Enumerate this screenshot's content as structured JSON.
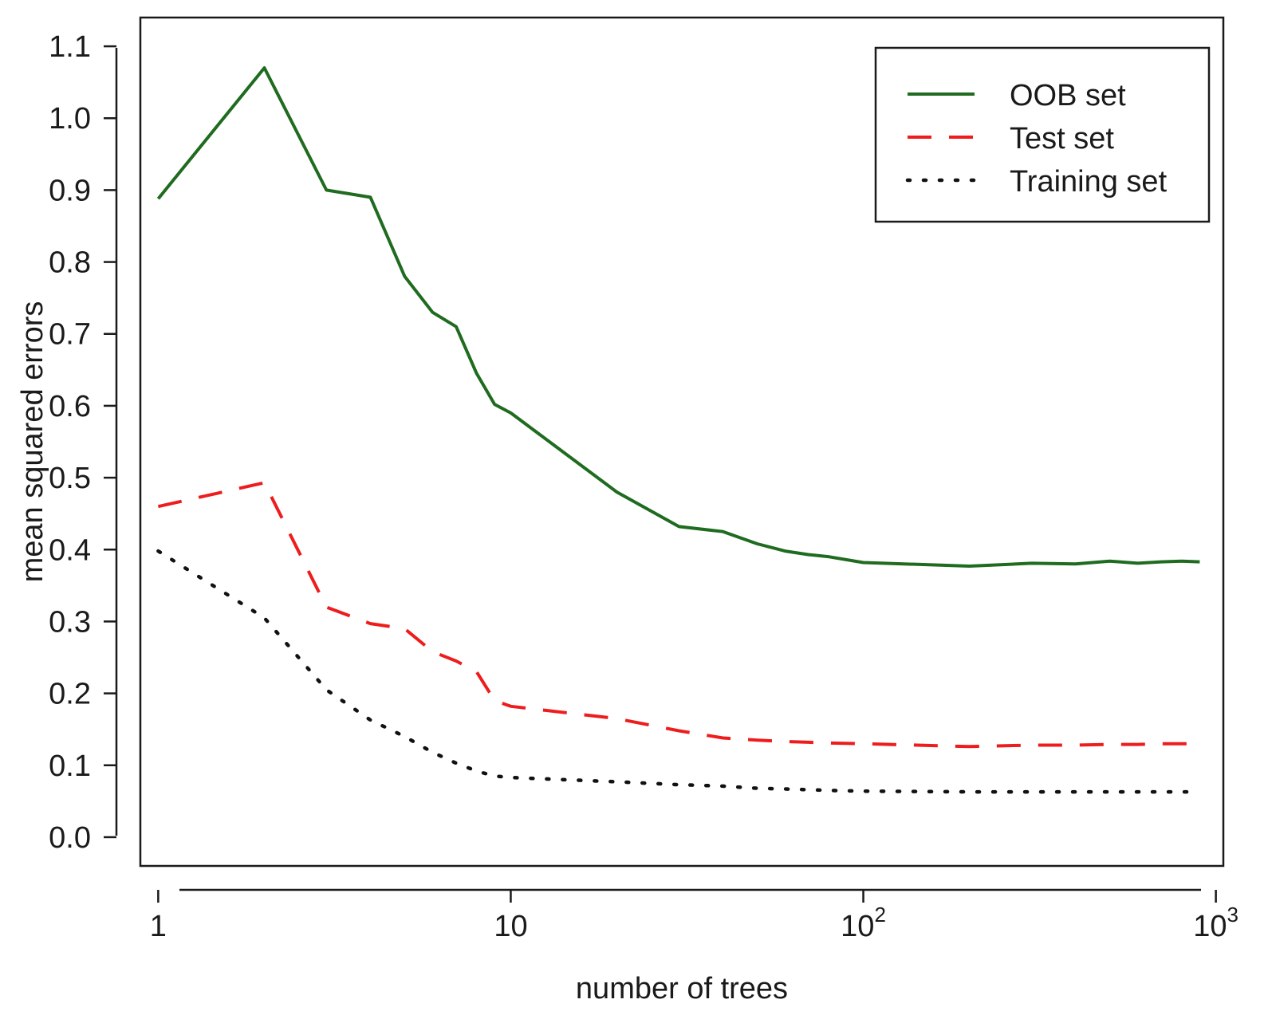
{
  "chart_data": {
    "type": "line",
    "title": "",
    "xlabel": "number of trees",
    "ylabel": "mean squared errors",
    "xscale": "log10",
    "xlim": [
      0.89,
      1050
    ],
    "ylim": [
      -0.04,
      1.14
    ],
    "grid": false,
    "legend_position": "top-right",
    "x_ticks": [
      {
        "value": 1,
        "base": "1",
        "exp": ""
      },
      {
        "value": 10,
        "base": "10",
        "exp": ""
      },
      {
        "value": 100,
        "base": "10",
        "exp": "2"
      },
      {
        "value": 1000,
        "base": "10",
        "exp": "3"
      }
    ],
    "y_ticks": [
      "0.0",
      "0.1",
      "0.2",
      "0.3",
      "0.4",
      "0.5",
      "0.6",
      "0.7",
      "0.8",
      "0.9",
      "1.0",
      "1.1"
    ],
    "series": [
      {
        "name": "OOB set",
        "color": "#1f6b1f",
        "style": "solid",
        "x": [
          1,
          2,
          3,
          4,
          5,
          6,
          7,
          8,
          9,
          10,
          20,
          30,
          40,
          50,
          60,
          70,
          80,
          100,
          200,
          300,
          400,
          500,
          600,
          700,
          800,
          900
        ],
        "y": [
          0.888,
          1.07,
          0.9,
          0.89,
          0.78,
          0.73,
          0.71,
          0.645,
          0.602,
          0.59,
          0.48,
          0.432,
          0.425,
          0.408,
          0.398,
          0.393,
          0.39,
          0.382,
          0.377,
          0.381,
          0.38,
          0.384,
          0.381,
          0.383,
          0.384,
          0.383
        ]
      },
      {
        "name": "Test set",
        "color": "#ee1c1c",
        "style": "dashed",
        "x": [
          1,
          2,
          3,
          4,
          5,
          6,
          7,
          8,
          9,
          10,
          20,
          30,
          40,
          50,
          60,
          70,
          80,
          100,
          200,
          300,
          400,
          500,
          600,
          700,
          800,
          900
        ],
        "y": [
          0.46,
          0.493,
          0.32,
          0.297,
          0.29,
          0.258,
          0.245,
          0.23,
          0.19,
          0.182,
          0.165,
          0.148,
          0.138,
          0.135,
          0.133,
          0.132,
          0.131,
          0.13,
          0.126,
          0.128,
          0.128,
          0.129,
          0.129,
          0.13,
          0.13,
          0.13
        ]
      },
      {
        "name": "Training set",
        "color": "#111111",
        "style": "dotted",
        "x": [
          1,
          2,
          3,
          4,
          5,
          6,
          7,
          8,
          9,
          10,
          20,
          30,
          40,
          50,
          60,
          70,
          80,
          100,
          200,
          300,
          400,
          500,
          600,
          700,
          800,
          900
        ],
        "y": [
          0.398,
          0.305,
          0.205,
          0.163,
          0.14,
          0.118,
          0.103,
          0.092,
          0.085,
          0.083,
          0.077,
          0.073,
          0.071,
          0.068,
          0.067,
          0.066,
          0.065,
          0.064,
          0.063,
          0.063,
          0.063,
          0.063,
          0.063,
          0.063,
          0.063,
          0.063
        ]
      }
    ]
  }
}
